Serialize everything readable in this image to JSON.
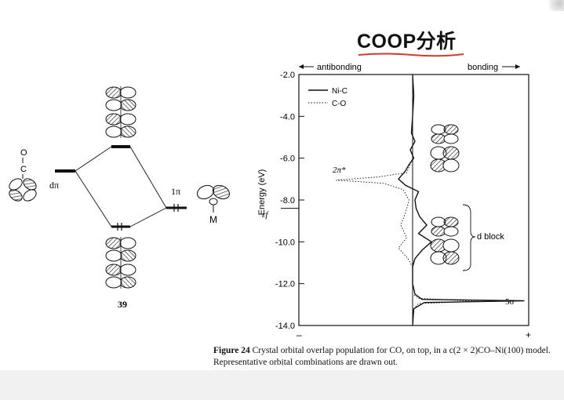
{
  "slide": {
    "title": "COOP分析",
    "title_underline_color": "#d23b2f"
  },
  "mo_diagram": {
    "left_atom_label": "O",
    "left_atom_label2": "C",
    "left_level_label": "dπ",
    "right_level_label": "1π",
    "right_metal_label": "M",
    "number": "39"
  },
  "coop_plot": {
    "header_left": "antibonding",
    "header_right": "bonding",
    "ylabel": "Energy (eV)",
    "ef_label": "εf",
    "legend": [
      "Ni-C",
      "C-O"
    ],
    "annotation_2pi": "2π*",
    "annotation_dblock": "d block",
    "annotation_5sigma": "5σ",
    "minus_label": "–",
    "plus_label": "+"
  },
  "chart_data": {
    "type": "line",
    "ylabel": "Energy (eV)",
    "ylim": [
      -14.0,
      -2.0
    ],
    "yticks": [
      "-2.0",
      "-4.0",
      "-6.0",
      "-8.0",
      "-10.0",
      "-12.0",
      "-14.0"
    ],
    "ytick_values": [
      -2,
      -4,
      -6,
      -8,
      -10,
      -12,
      -14
    ],
    "fermi_level": -8.4,
    "series": [
      {
        "name": "Ni-C",
        "style": "solid",
        "points": [
          [
            0.0,
            -2.0
          ],
          [
            0.01,
            -3.0
          ],
          [
            0.0,
            -4.0
          ],
          [
            -0.01,
            -4.8
          ],
          [
            0.02,
            -5.2
          ],
          [
            -0.02,
            -5.6
          ],
          [
            0.01,
            -6.0
          ],
          [
            -0.03,
            -6.3
          ],
          [
            -0.06,
            -6.6
          ],
          [
            -0.12,
            -7.0
          ],
          [
            -0.06,
            -7.3
          ],
          [
            0.05,
            -7.6
          ],
          [
            0.02,
            -8.0
          ],
          [
            0.03,
            -8.4
          ],
          [
            0.06,
            -8.8
          ],
          [
            0.12,
            -9.2
          ],
          [
            0.05,
            -9.6
          ],
          [
            0.16,
            -10.0
          ],
          [
            0.08,
            -10.4
          ],
          [
            0.02,
            -10.8
          ],
          [
            0.0,
            -11.2
          ],
          [
            0.0,
            -12.0
          ],
          [
            0.02,
            -12.5
          ],
          [
            0.08,
            -12.75
          ],
          [
            0.95,
            -12.82
          ],
          [
            0.1,
            -12.9
          ],
          [
            0.01,
            -13.2
          ],
          [
            0.0,
            -14.0
          ]
        ]
      },
      {
        "name": "C-O",
        "style": "dotted",
        "points": [
          [
            0.0,
            -2.0
          ],
          [
            0.0,
            -6.0
          ],
          [
            -0.05,
            -6.7
          ],
          [
            -0.3,
            -6.9
          ],
          [
            -0.65,
            -7.05
          ],
          [
            -0.25,
            -7.2
          ],
          [
            -0.08,
            -7.5
          ],
          [
            -0.03,
            -8.0
          ],
          [
            -0.06,
            -8.6
          ],
          [
            -0.1,
            -9.2
          ],
          [
            -0.05,
            -9.8
          ],
          [
            -0.12,
            -10.3
          ],
          [
            -0.04,
            -10.8
          ],
          [
            0.0,
            -11.2
          ],
          [
            0.0,
            -12.5
          ],
          [
            0.05,
            -12.7
          ],
          [
            0.55,
            -12.85
          ],
          [
            0.05,
            -12.95
          ],
          [
            0.0,
            -13.3
          ],
          [
            0.0,
            -14.0
          ]
        ]
      }
    ]
  },
  "caption": {
    "figure": "Figure 24",
    "text": " Crystal orbital overlap population for CO, on top, in a c(2 × 2)CO–Ni(100) model. Representative orbital combinations are drawn out."
  }
}
